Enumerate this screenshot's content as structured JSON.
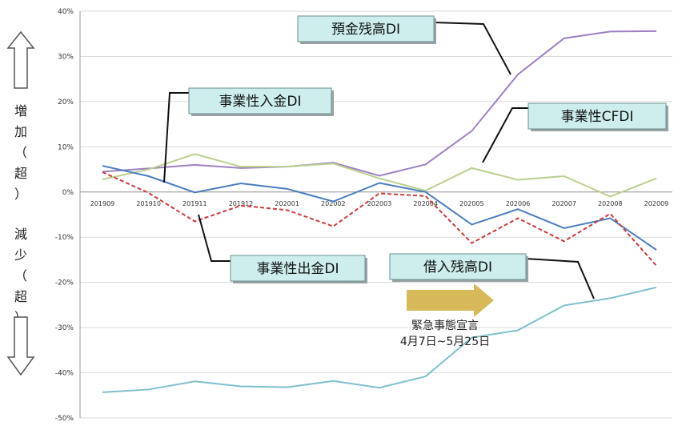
{
  "side_labels": {
    "increase": [
      "増",
      "加",
      "（",
      "超",
      "）"
    ],
    "decrease": [
      "減",
      "少",
      "（",
      "超",
      "）"
    ],
    "up_arrow_icon": "up-arrow-icon",
    "down_arrow_icon": "down-arrow-icon"
  },
  "chart_data": {
    "type": "line",
    "categories": [
      "201909",
      "201910",
      "201911",
      "201912",
      "202001",
      "202002",
      "202003",
      "202004",
      "202005",
      "202006",
      "202007",
      "202008",
      "202009"
    ],
    "ylim": [
      -50,
      40
    ],
    "yticks": [
      "40%",
      "30%",
      "20%",
      "10%",
      "0%",
      "-10%",
      "-20%",
      "-30%",
      "-40%",
      "-50%"
    ],
    "ytick_values": [
      40,
      30,
      20,
      10,
      0,
      -10,
      -20,
      -30,
      -40,
      -50
    ],
    "grid": true,
    "series": [
      {
        "name": "預金残高DI",
        "color": "#9e7fc4",
        "dash": false,
        "values": [
          4.5,
          5.2,
          6.0,
          5.3,
          5.6,
          6.5,
          3.6,
          6.1,
          13.5,
          26.0,
          34.0,
          35.5,
          35.6
        ]
      },
      {
        "name": "事業性CFDI",
        "color": "#b9d08d",
        "dash": false,
        "values": [
          2.8,
          5.0,
          8.4,
          5.6,
          5.6,
          6.3,
          3.0,
          0.3,
          5.3,
          2.7,
          3.5,
          -1.0,
          3.0
        ]
      },
      {
        "name": "事業性入金DI",
        "color": "#4a7cc0",
        "dash": false,
        "values": [
          5.8,
          3.5,
          -0.1,
          1.9,
          0.7,
          -2.1,
          2.0,
          0.0,
          -7.2,
          -3.8,
          -8.0,
          -5.8,
          -12.8
        ]
      },
      {
        "name": "事業性出金DI",
        "color": "#cc3a3a",
        "dash": true,
        "values": [
          4.4,
          -0.2,
          -6.5,
          -3.0,
          -4.0,
          -7.6,
          -0.3,
          -0.9,
          -11.3,
          -5.8,
          -10.9,
          -4.8,
          -16.3
        ]
      },
      {
        "name": "借入残高DI",
        "color": "#7fbfd0",
        "dash": false,
        "values": [
          -44.3,
          -43.7,
          -41.9,
          -43.0,
          -43.2,
          -41.8,
          -43.3,
          -40.8,
          -32.2,
          -30.6,
          -25.1,
          -23.5,
          -21.1
        ]
      }
    ],
    "callouts": [
      {
        "text": "預金残高DI",
        "series": 0
      },
      {
        "text": "事業性入金DI",
        "series": 2
      },
      {
        "text": "事業性CFDI",
        "series": 1
      },
      {
        "text": "事業性出金DI",
        "series": 3
      },
      {
        "text": "借入残高DI",
        "series": 4
      }
    ],
    "annotation": {
      "arrow_icon": "right-arrow-icon",
      "line1": "緊急事態宣言",
      "line2": "4月7日~5月25日",
      "arrow_color": "#d8b95a"
    }
  }
}
